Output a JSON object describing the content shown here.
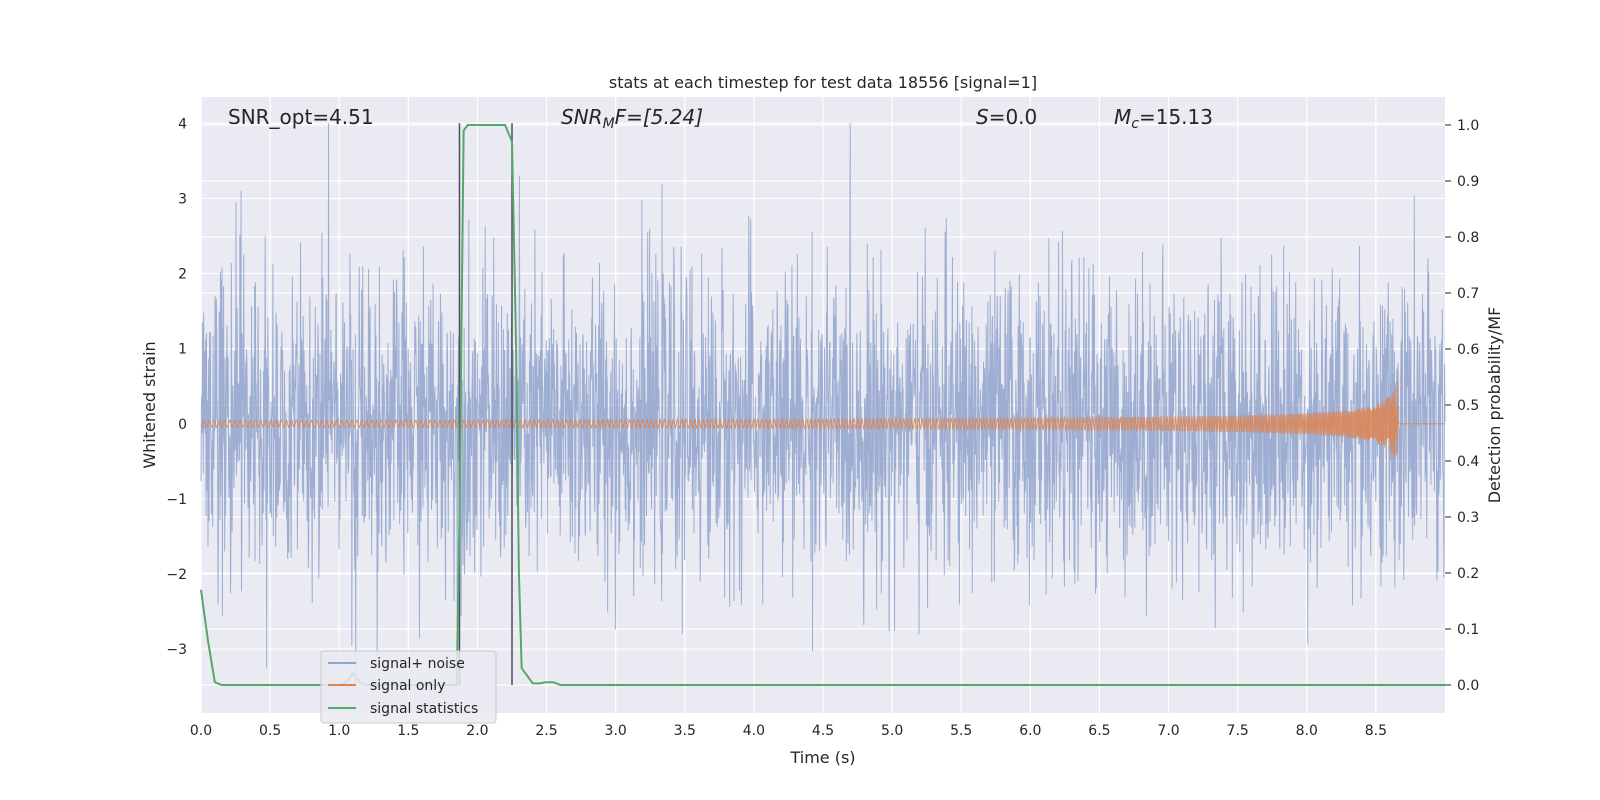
{
  "chart_data": {
    "type": "line",
    "title": "stats at each timestep for test data 18556 [signal=1]",
    "xlabel": "Time (s)",
    "ylabel_left": "Whitened strain",
    "ylabel_right": "Detection probability/MF",
    "xlim": [
      0,
      9
    ],
    "ylim_left": [
      -3.85,
      4.35
    ],
    "ylim_right": [
      -0.05,
      1.05
    ],
    "x_ticks": [
      0.0,
      0.5,
      1.0,
      1.5,
      2.0,
      2.5,
      3.0,
      3.5,
      4.0,
      4.5,
      5.0,
      5.5,
      6.0,
      6.5,
      7.0,
      7.5,
      8.0,
      8.5
    ],
    "x_tick_labels": [
      "0.0",
      "0.5",
      "1.0",
      "1.5",
      "2.0",
      "2.5",
      "3.0",
      "3.5",
      "4.0",
      "4.5",
      "5.0",
      "5.5",
      "6.0",
      "6.5",
      "7.0",
      "7.5",
      "8.0",
      "8.5"
    ],
    "y_ticks_left": [
      -3,
      -2,
      -1,
      0,
      1,
      2,
      3,
      4
    ],
    "y_tick_labels_left": [
      "−3",
      "−2",
      "−1",
      "0",
      "1",
      "2",
      "3",
      "4"
    ],
    "y_ticks_right": [
      0.0,
      0.1,
      0.2,
      0.3,
      0.4,
      0.5,
      0.6,
      0.7,
      0.8,
      0.9,
      1.0
    ],
    "y_tick_labels_right": [
      "0.0",
      "0.1",
      "0.2",
      "0.3",
      "0.4",
      "0.5",
      "0.6",
      "0.7",
      "0.8",
      "0.9",
      "1.0"
    ],
    "grid": true,
    "legend_position": "lower-left",
    "annotations": {
      "snr_opt": "SNR_opt=4.51",
      "snr_mf_prefix": "SNR",
      "snr_mf_sub": "M",
      "snr_mf_suffix": "F=[5.24]",
      "s_var": "S",
      "s_value": "=0.0",
      "mc_var": "M",
      "mc_sub": "c",
      "mc_value": "=15.13"
    },
    "vertical_lines_x": [
      1.87,
      2.25
    ],
    "series": [
      {
        "name": "signal+ noise",
        "color": "#8fa3cc",
        "axis": "left",
        "description_stats": {
          "mean": 0,
          "std": 1.0,
          "peak_max": 4.0,
          "peak_min": -3.55
        }
      },
      {
        "name": "signal only",
        "color": "#dd8452",
        "axis": "left",
        "chirp": {
          "amplitude_start": 0.0,
          "amplitude_end": 0.7,
          "t_end": 8.66
        }
      },
      {
        "name": "signal statistics",
        "color": "#55a868",
        "axis": "right",
        "x": [
          0.0,
          0.05,
          0.1,
          0.15,
          0.2,
          0.9,
          1.0,
          1.05,
          1.1,
          1.15,
          1.2,
          1.5,
          1.85,
          1.87,
          1.9,
          1.93,
          2.0,
          2.1,
          2.2,
          2.25,
          2.28,
          2.3,
          2.32,
          2.35,
          2.4,
          2.45,
          2.5,
          2.55,
          2.6,
          2.65,
          3.0,
          5.0,
          9.0
        ],
        "y": [
          0.17,
          0.08,
          0.005,
          0.0,
          0.0,
          0.0,
          0.0,
          0.005,
          0.02,
          0.005,
          0.0,
          0.0,
          0.0,
          0.3,
          0.99,
          1.0,
          1.0,
          1.0,
          1.0,
          0.97,
          0.6,
          0.2,
          0.03,
          0.02,
          0.003,
          0.003,
          0.005,
          0.005,
          0.0,
          0.0,
          0.0,
          0.0,
          0.0
        ]
      }
    ]
  }
}
